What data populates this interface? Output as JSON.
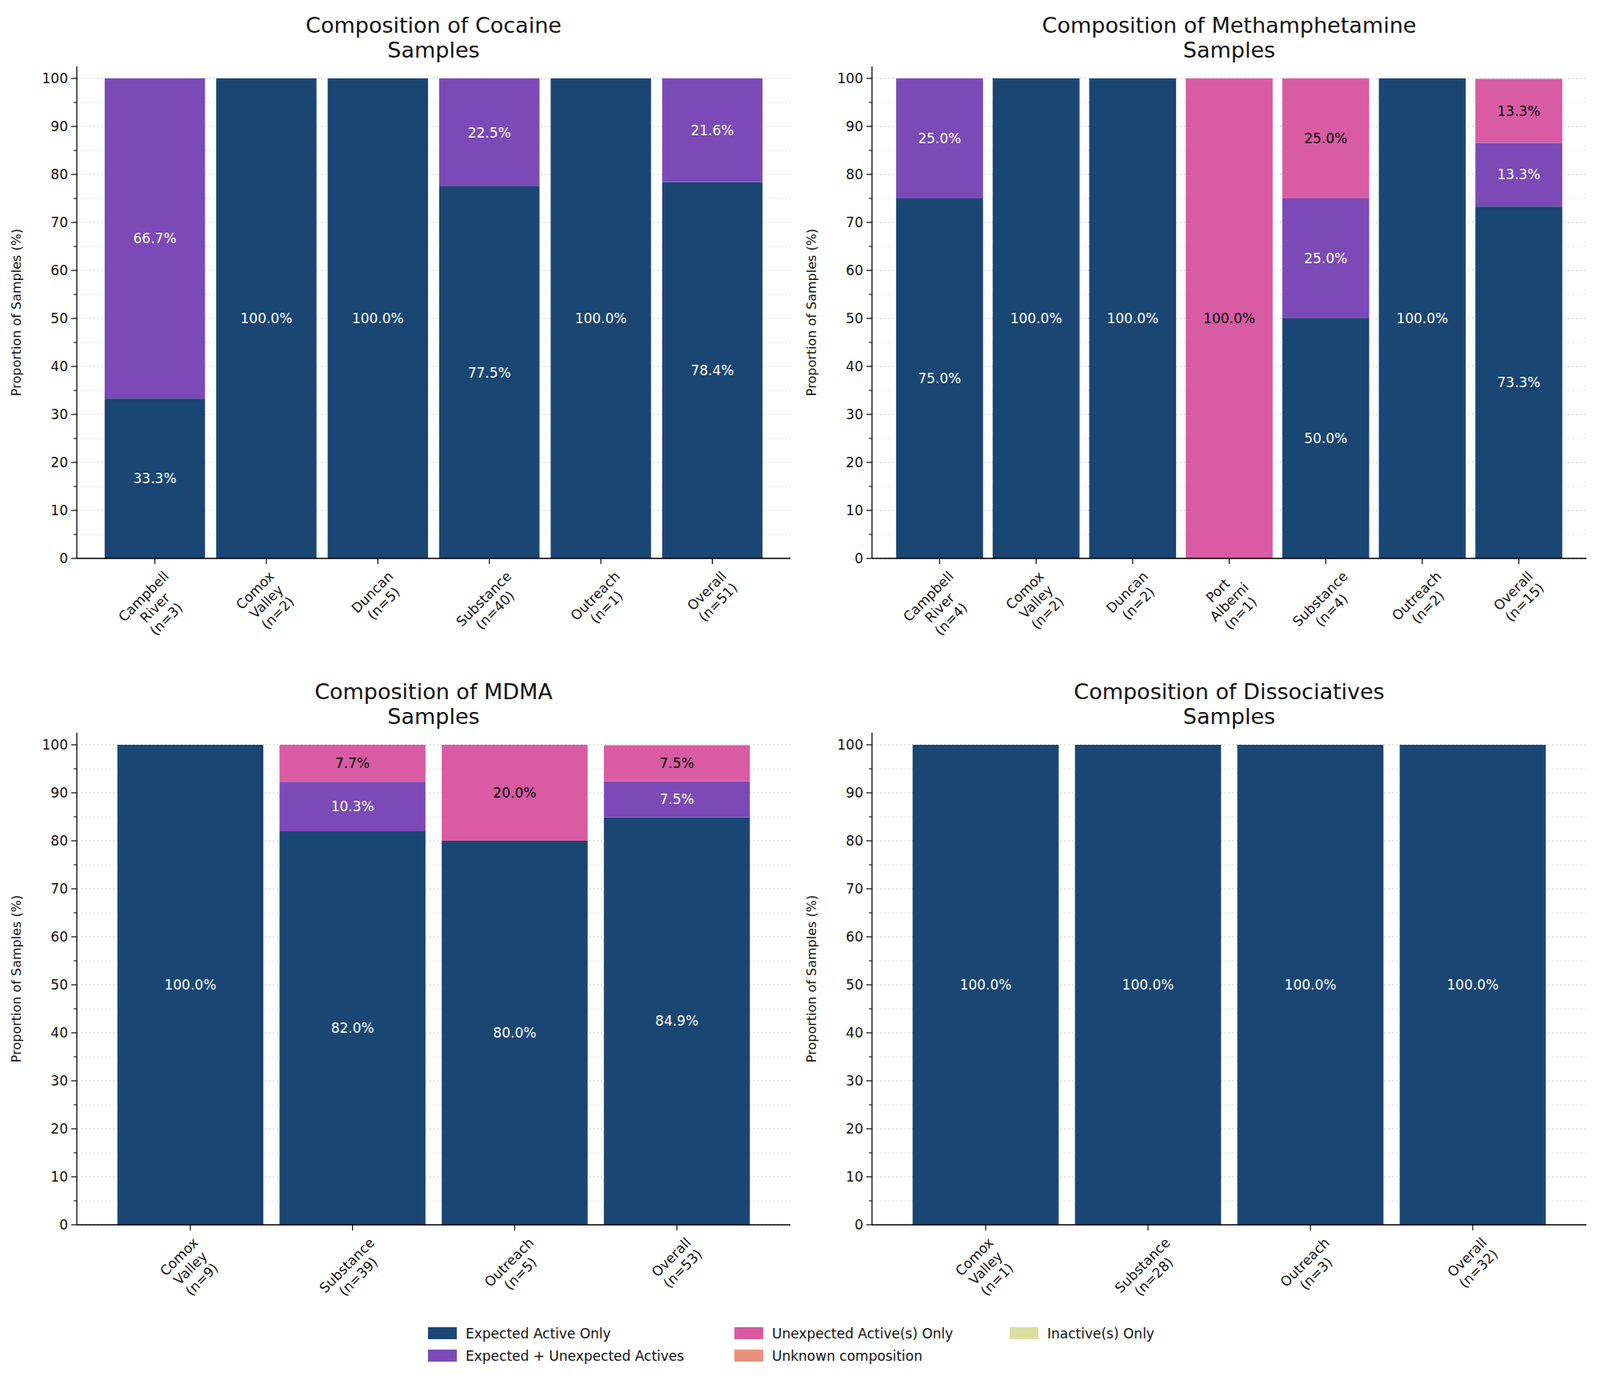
{
  "chart_data": [
    {
      "type": "bar",
      "stacked": true,
      "data_labels": true,
      "grid": true,
      "legend": "bottom",
      "title": "Composition of Cocaine\nSamples",
      "y_label": "Proportion of Samples (%)",
      "categories": [
        "Campbell\nRiver\n(n=3)",
        "Comox\nValley\n(n=2)",
        "Duncan\n(n=5)",
        "Substance\n(n=40)",
        "Outreach\n(n=1)",
        "Overall\n(n=51)"
      ],
      "ylim": [
        0,
        102.5
      ],
      "yticks": [
        0,
        10,
        20,
        30,
        40,
        50,
        60,
        70,
        80,
        90,
        100
      ],
      "series": [
        {
          "name": "Expected Active Only",
          "color": "#1a4674",
          "values": [
            33.3,
            100,
            100,
            77.5,
            100,
            78.4
          ],
          "value_labels": [
            "33.3%",
            "100.0%",
            "100.0%",
            "77.5%",
            "100.0%",
            "78.4%"
          ]
        },
        {
          "name": "Expected + Unexpected Actives",
          "color": "#7b4ab6",
          "values": [
            66.7,
            0,
            0,
            22.5,
            0,
            21.6
          ],
          "value_labels": [
            "66.7%",
            null,
            null,
            "22.5%",
            null,
            "21.6%"
          ]
        },
        {
          "name": "Unexpected Active(s) Only",
          "color": "#d85ba4",
          "values": [
            0,
            0,
            0,
            0,
            0,
            0
          ],
          "value_labels": [
            null,
            null,
            null,
            null,
            null,
            null
          ]
        },
        {
          "name": "Unknown composition",
          "color": "#e8917c",
          "values": [
            0,
            0,
            0,
            0,
            0,
            0
          ],
          "value_labels": [
            null,
            null,
            null,
            null,
            null,
            null
          ]
        },
        {
          "name": "Inactive(s) Only",
          "color": "#dcdea0",
          "values": [
            0,
            0,
            0,
            0,
            0,
            0
          ],
          "value_labels": [
            null,
            null,
            null,
            null,
            null,
            null
          ]
        }
      ]
    },
    {
      "type": "bar",
      "stacked": true,
      "data_labels": true,
      "grid": true,
      "title": "Composition of Methamphetamine\nSamples",
      "y_label": "Proportion of Samples (%)",
      "categories": [
        "Campbell\nRiver\n(n=4)",
        "Comox\nValley\n(n=2)",
        "Duncan\n(n=2)",
        "Port\nAlberni\n(n=1)",
        "Substance\n(n=4)",
        "Outreach\n(n=2)",
        "Overall\n(n=15)"
      ],
      "ylim": [
        0,
        102.5
      ],
      "yticks": [
        0,
        10,
        20,
        30,
        40,
        50,
        60,
        70,
        80,
        90,
        100
      ],
      "series": [
        {
          "name": "Expected Active Only",
          "color": "#1a4674",
          "values": [
            75,
            100,
            100,
            0,
            50,
            100,
            73.3
          ],
          "value_labels": [
            "75.0%",
            "100.0%",
            "100.0%",
            null,
            "50.0%",
            "100.0%",
            "73.3%"
          ]
        },
        {
          "name": "Expected + Unexpected Actives",
          "color": "#7b4ab6",
          "values": [
            25,
            0,
            0,
            0,
            25,
            0,
            13.3
          ],
          "value_labels": [
            "25.0%",
            null,
            null,
            null,
            "25.0%",
            null,
            "13.3%"
          ]
        },
        {
          "name": "Unexpected Active(s) Only",
          "color": "#d85ba4",
          "values": [
            0,
            0,
            0,
            100,
            25,
            0,
            13.3
          ],
          "value_labels": [
            null,
            null,
            null,
            "100.0%",
            "25.0%",
            null,
            "13.3%"
          ]
        }
      ]
    },
    {
      "type": "bar",
      "stacked": true,
      "data_labels": true,
      "grid": true,
      "title": "Composition of MDMA\nSamples",
      "y_label": "Proportion of Samples (%)",
      "categories": [
        "Comox\nValley\n(n=9)",
        "Substance\n(n=39)",
        "Outreach\n(n=5)",
        "Overall\n(n=53)"
      ],
      "ylim": [
        0,
        102.5
      ],
      "yticks": [
        0,
        10,
        20,
        30,
        40,
        50,
        60,
        70,
        80,
        90,
        100
      ],
      "series": [
        {
          "name": "Expected Active Only",
          "color": "#1a4674",
          "values": [
            100,
            82.0,
            80.0,
            84.9
          ],
          "value_labels": [
            "100.0%",
            "82.0%",
            "80.0%",
            "84.9%"
          ]
        },
        {
          "name": "Expected + Unexpected Actives",
          "color": "#7b4ab6",
          "values": [
            0,
            10.3,
            0,
            7.5
          ],
          "value_labels": [
            null,
            "10.3%",
            null,
            "7.5%"
          ]
        },
        {
          "name": "Unexpected Active(s) Only",
          "color": "#d85ba4",
          "values": [
            0,
            7.7,
            20.0,
            7.5
          ],
          "value_labels": [
            null,
            "7.7%",
            "20.0%",
            "7.5%"
          ]
        }
      ]
    },
    {
      "type": "bar",
      "stacked": true,
      "data_labels": true,
      "grid": true,
      "title": "Composition of Dissociatives\nSamples",
      "y_label": "Proportion of Samples (%)",
      "categories": [
        "Comox\nValley\n(n=1)",
        "Substance\n(n=28)",
        "Outreach\n(n=3)",
        "Overall\n(n=32)"
      ],
      "ylim": [
        0,
        102.5
      ],
      "yticks": [
        0,
        10,
        20,
        30,
        40,
        50,
        60,
        70,
        80,
        90,
        100
      ],
      "series": [
        {
          "name": "Expected Active Only",
          "color": "#1a4674",
          "values": [
            100,
            100,
            100,
            100
          ],
          "value_labels": [
            "100.0%",
            "100.0%",
            "100.0%",
            "100.0%"
          ]
        }
      ]
    }
  ]
}
